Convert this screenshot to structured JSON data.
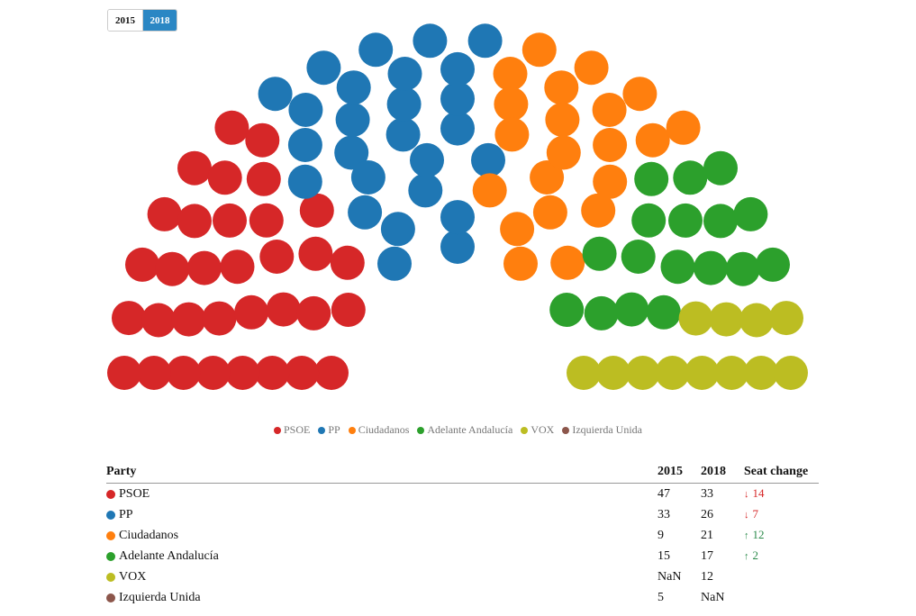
{
  "toggle": {
    "options": [
      "2015",
      "2018"
    ],
    "selected": "2018"
  },
  "chart_data": {
    "type": "parliament",
    "year": "2018",
    "parties": [
      {
        "name": "PSOE",
        "color": "#d62728",
        "seats": 33
      },
      {
        "name": "PP",
        "color": "#1f77b4",
        "seats": 26
      },
      {
        "name": "Ciudadanos",
        "color": "#ff7f0e",
        "seats": 21
      },
      {
        "name": "Adelante Andalucía",
        "color": "#2ca02c",
        "seats": 17
      },
      {
        "name": "VOX",
        "color": "#bcbd22",
        "seats": 12
      },
      {
        "name": "Izquierda Unida",
        "color": "#8c564b",
        "seats": 0
      }
    ],
    "legend": [
      "PSOE",
      "PP",
      "Ciudadanos",
      "Adelante Andalucía",
      "VOX",
      "Izquierda Unida"
    ]
  },
  "table": {
    "headers": {
      "party": "Party",
      "y1": "2015",
      "y2": "2018",
      "change": "Seat change"
    },
    "rows": [
      {
        "party": "PSOE",
        "color": "#d62728",
        "y1": "47",
        "y2": "33",
        "change": "14",
        "direction": "down"
      },
      {
        "party": "PP",
        "color": "#1f77b4",
        "y1": "33",
        "y2": "26",
        "change": "7",
        "direction": "down"
      },
      {
        "party": "Ciudadanos",
        "color": "#ff7f0e",
        "y1": "9",
        "y2": "21",
        "change": "12",
        "direction": "up"
      },
      {
        "party": "Adelante Andalucía",
        "color": "#2ca02c",
        "y1": "15",
        "y2": "17",
        "change": "2",
        "direction": "up"
      },
      {
        "party": "VOX",
        "color": "#bcbd22",
        "y1": "NaN",
        "y2": "12",
        "change": "",
        "direction": ""
      },
      {
        "party": "Izquierda Unida",
        "color": "#8c564b",
        "y1": "5",
        "y2": "NaN",
        "change": "",
        "direction": ""
      }
    ]
  }
}
